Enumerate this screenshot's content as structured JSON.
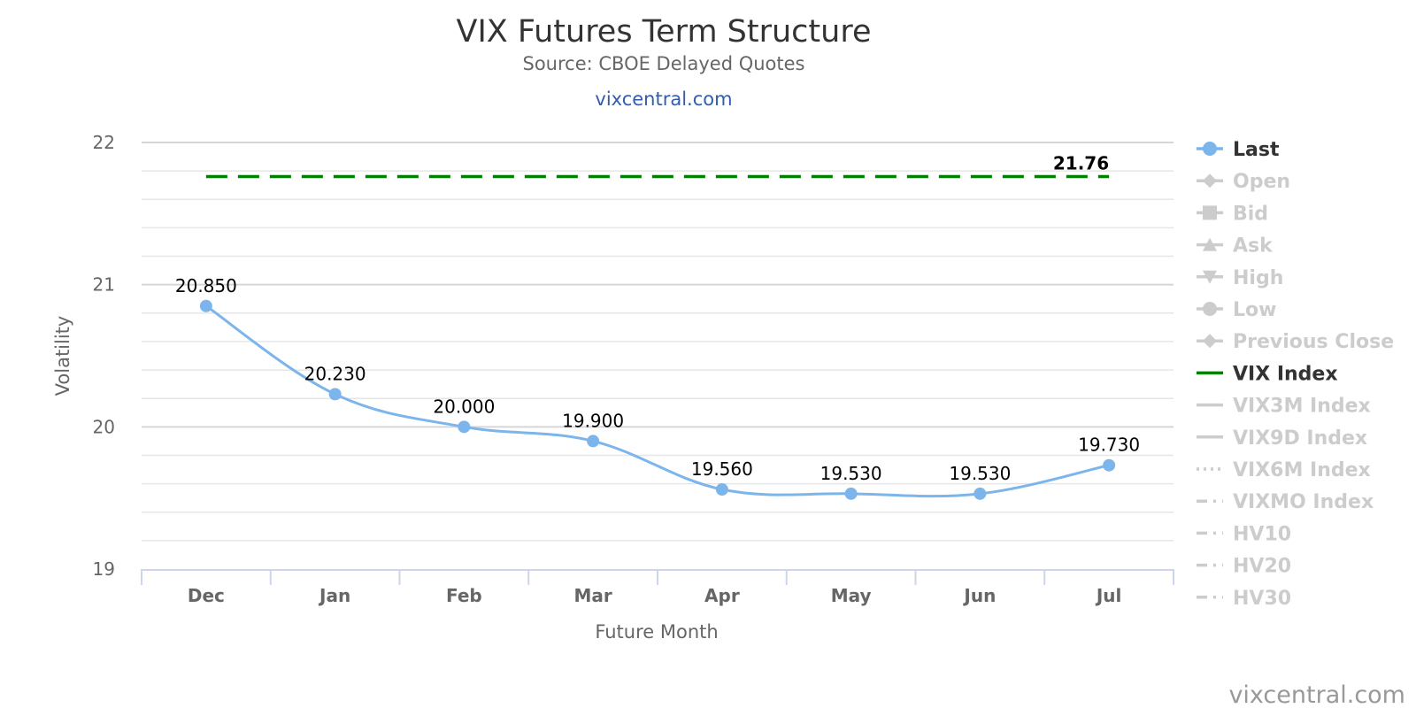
{
  "chart_data": {
    "type": "line",
    "title": "VIX Futures Term Structure",
    "subtitle": "Source: CBOE Delayed Quotes",
    "link": "vixcentral.com",
    "credit": "vixcentral.com",
    "xlabel": "Future Month",
    "ylabel": "Volatility",
    "ylim": [
      19,
      22
    ],
    "yticks": [
      "19",
      "20",
      "21",
      "22"
    ],
    "categories": [
      "Dec",
      "Jan",
      "Feb",
      "Mar",
      "Apr",
      "May",
      "Jun",
      "Jul"
    ],
    "grid": true,
    "legend_position": "right",
    "series": [
      {
        "name": "Last",
        "values": [
          20.85,
          20.23,
          20.0,
          19.9,
          19.56,
          19.53,
          19.53,
          19.73
        ],
        "labels": [
          "20.850",
          "20.230",
          "20.000",
          "19.900",
          "19.560",
          "19.530",
          "19.530",
          "19.730"
        ],
        "color": "#7cb5ec"
      },
      {
        "name": "VIX Index",
        "value": 21.76,
        "label": "21.76",
        "color": "#008000",
        "style": "dashed"
      }
    ],
    "legend": [
      {
        "name": "Last",
        "symbol": "circle",
        "line": "solid",
        "active": true,
        "color": "#7cb5ec"
      },
      {
        "name": "Open",
        "symbol": "diamond",
        "line": "solid",
        "active": false
      },
      {
        "name": "Bid",
        "symbol": "square",
        "line": "solid",
        "active": false
      },
      {
        "name": "Ask",
        "symbol": "triangle",
        "line": "solid",
        "active": false
      },
      {
        "name": "High",
        "symbol": "triangle-down",
        "line": "solid",
        "active": false
      },
      {
        "name": "Low",
        "symbol": "circle",
        "line": "solid",
        "active": false
      },
      {
        "name": "Previous Close",
        "symbol": "diamond",
        "line": "solid",
        "active": false
      },
      {
        "name": "VIX Index",
        "symbol": "none",
        "line": "solid",
        "active": true,
        "color": "#008000"
      },
      {
        "name": "VIX3M Index",
        "symbol": "none",
        "line": "solid",
        "active": false
      },
      {
        "name": "VIX9D Index",
        "symbol": "none",
        "line": "solid",
        "active": false
      },
      {
        "name": "VIX6M Index",
        "symbol": "none",
        "line": "dotted",
        "active": false
      },
      {
        "name": "VIXMO Index",
        "symbol": "none",
        "line": "dashdot",
        "active": false
      },
      {
        "name": "HV10",
        "symbol": "none",
        "line": "dashdot",
        "active": false
      },
      {
        "name": "HV20",
        "symbol": "none",
        "line": "dashdot",
        "active": false
      },
      {
        "name": "HV30",
        "symbol": "none",
        "line": "dashdot",
        "active": false
      }
    ]
  }
}
